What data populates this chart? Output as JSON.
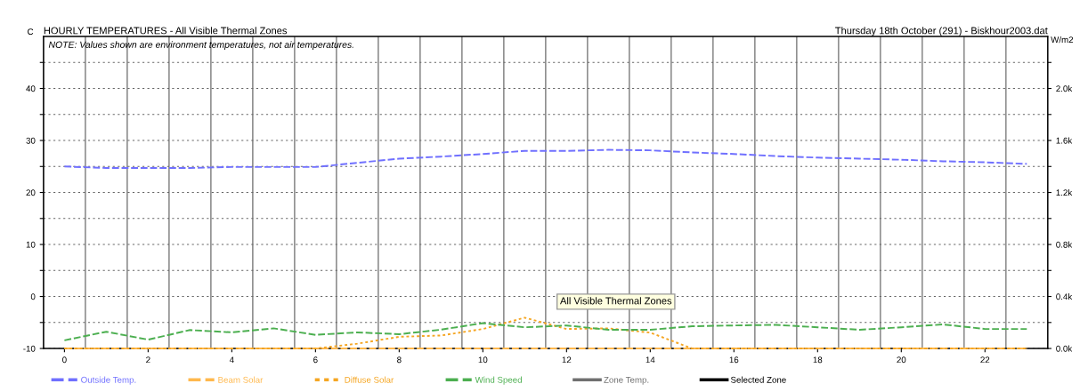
{
  "chart_data": {
    "type": "line",
    "title": "HOURLY TEMPERATURES - All Visible Thermal Zones",
    "subtitle": "Thursday 18th October (291) - Biskhour2003.dat",
    "ylabel": "C",
    "y2label": "W/m2",
    "annotations": [
      "NOTE: Values shown are environment temperatures, not air temperatures.",
      "All Visible Thermal Zones"
    ],
    "x": [
      0,
      1,
      2,
      3,
      4,
      5,
      6,
      7,
      8,
      9,
      10,
      11,
      12,
      13,
      14,
      15,
      16,
      17,
      18,
      19,
      20,
      21,
      22,
      23
    ],
    "xlim": [
      -0.5,
      23.5
    ],
    "xticks": [
      0,
      2,
      4,
      6,
      8,
      10,
      12,
      14,
      16,
      18,
      20,
      22
    ],
    "ylim": [
      -10,
      50
    ],
    "yticks": [
      -10,
      {
        "value": -5,
        "label": null
      },
      0,
      {
        "value": 5,
        "label": null
      },
      10,
      {
        "value": 15,
        "label": null
      },
      20,
      {
        "value": 25,
        "label": null
      },
      30,
      {
        "value": 35,
        "label": null
      },
      40,
      {
        "value": 45,
        "label": null
      }
    ],
    "y2lim": [
      0,
      2400
    ],
    "y2ticks": [
      {
        "value": 0,
        "label": "0.0k"
      },
      {
        "value": 200,
        "label": null
      },
      {
        "value": 400,
        "label": "0.4k"
      },
      {
        "value": 600,
        "label": null
      },
      {
        "value": 800,
        "label": "0.8k"
      },
      {
        "value": 1000,
        "label": null
      },
      {
        "value": 1200,
        "label": "1.2k"
      },
      {
        "value": 1400,
        "label": null
      },
      {
        "value": 1600,
        "label": "1.6k"
      },
      {
        "value": 1800,
        "label": null
      },
      {
        "value": 2000,
        "label": "2.0k"
      },
      {
        "value": 2200,
        "label": null
      }
    ],
    "grid": "y",
    "legend": "bottom",
    "marker": "none",
    "ref_lines": [
      {
        "axis": "x",
        "value": 0.5,
        "color": "#909090"
      },
      {
        "axis": "x",
        "value": 1.5,
        "color": "#909090"
      },
      {
        "axis": "x",
        "value": 2.5,
        "color": "#909090"
      },
      {
        "axis": "x",
        "value": 3.5,
        "color": "#909090"
      },
      {
        "axis": "x",
        "value": 4.5,
        "color": "#909090"
      },
      {
        "axis": "x",
        "value": 5.5,
        "color": "#909090"
      },
      {
        "axis": "x",
        "value": 6.5,
        "color": "#909090"
      },
      {
        "axis": "x",
        "value": 7.5,
        "color": "#909090"
      },
      {
        "axis": "x",
        "value": 8.5,
        "color": "#909090"
      },
      {
        "axis": "x",
        "value": 9.5,
        "color": "#909090"
      },
      {
        "axis": "x",
        "value": 10.5,
        "color": "#909090"
      },
      {
        "axis": "x",
        "value": 11.5,
        "color": "#909090"
      },
      {
        "axis": "x",
        "value": 12.5,
        "color": "#909090"
      },
      {
        "axis": "x",
        "value": 13.5,
        "color": "#909090"
      },
      {
        "axis": "x",
        "value": 14.5,
        "color": "#909090"
      },
      {
        "axis": "x",
        "value": 15.5,
        "color": "#909090"
      },
      {
        "axis": "x",
        "value": 16.5,
        "color": "#909090"
      },
      {
        "axis": "x",
        "value": 17.5,
        "color": "#909090"
      },
      {
        "axis": "x",
        "value": 18.5,
        "color": "#909090"
      },
      {
        "axis": "x",
        "value": 19.5,
        "color": "#909090"
      },
      {
        "axis": "x",
        "value": 20.5,
        "color": "#909090"
      },
      {
        "axis": "x",
        "value": 21.5,
        "color": "#909090"
      },
      {
        "axis": "x",
        "value": 22.5,
        "color": "#909090"
      }
    ],
    "series": [
      {
        "name": "Outside Temp.",
        "color": "#7070ff",
        "line_style": "dashed",
        "values": [
          25.0,
          24.7,
          24.7,
          24.7,
          24.9,
          24.9,
          24.9,
          25.7,
          26.5,
          26.9,
          27.4,
          28.0,
          28.0,
          28.2,
          28.1,
          27.7,
          27.4,
          27.0,
          26.7,
          26.5,
          26.3,
          26.0,
          25.8,
          25.5
        ]
      },
      {
        "name": "Beam Solar",
        "color": "#ffb84d",
        "axis": "y2",
        "line_style": "dashed",
        "values": [
          0,
          0,
          0,
          0,
          0,
          0,
          0,
          0,
          0,
          0,
          0,
          0,
          0,
          0,
          0,
          0,
          0,
          0,
          0,
          0,
          0,
          0,
          0,
          0
        ]
      },
      {
        "name": "Diffuse Solar",
        "color": "#f5a623",
        "axis": "y2",
        "line_style": "dotted",
        "values": [
          0,
          0,
          0,
          0,
          0,
          0,
          0,
          37,
          90,
          100,
          150,
          237,
          150,
          155,
          122,
          0,
          0,
          0,
          0,
          0,
          0,
          0,
          0,
          0
        ]
      },
      {
        "name": "Wind Speed",
        "color": "#4caf50",
        "axis": "y2",
        "line_style": "dashed",
        "values": [
          63,
          129,
          68,
          142,
          124,
          155,
          105,
          124,
          110,
          145,
          195,
          163,
          177,
          144,
          144,
          171,
          177,
          182,
          163,
          144,
          163,
          185,
          150,
          150
        ]
      },
      {
        "name": "Zone Temp.",
        "color": "#707070",
        "line_style": "solid",
        "values": [
          null,
          null,
          null,
          null,
          null,
          null,
          null,
          null,
          null,
          null,
          null,
          null,
          null,
          null,
          null,
          null,
          null,
          null,
          null,
          null,
          null,
          null,
          null,
          null
        ]
      },
      {
        "name": "Selected Zone",
        "color": "#000000",
        "line_style": "solid",
        "values": [
          null,
          null,
          null,
          null,
          null,
          null,
          null,
          null,
          null,
          null,
          null,
          null,
          null,
          null,
          null,
          null,
          null,
          null,
          null,
          null,
          null,
          null,
          null,
          null
        ]
      }
    ]
  }
}
